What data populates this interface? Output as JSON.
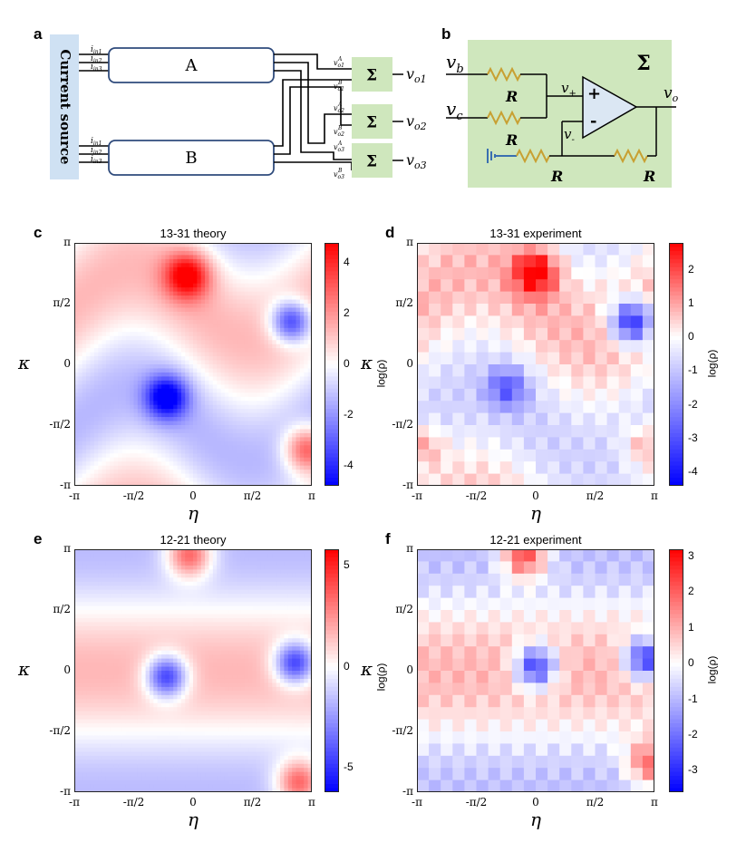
{
  "panel_labels": [
    "a",
    "b",
    "c",
    "d",
    "e",
    "f"
  ],
  "figure_a": {
    "source_label": "Current source",
    "block_a": "A",
    "block_b": "B",
    "input_labels": [
      "i",
      "in1",
      "in2",
      "in3"
    ],
    "sum_symbol": "Σ",
    "output_labels": [
      "vo1",
      "vo2",
      "vo3"
    ],
    "wire_labels": [
      "vA o1",
      "vB o1",
      "vA o2",
      "vB o2",
      "vA o3",
      "vB o3"
    ]
  },
  "figure_b": {
    "sum_symbol": "Σ",
    "vb": "v",
    "vb_sub": "b",
    "vc": "v",
    "vc_sub": "c",
    "vo": "v",
    "vo_sub": "o",
    "vplus": "v",
    "vplus_sub": "+",
    "vminus": "v",
    "vminus_sub": "-",
    "plus_sign": "+",
    "minus_sign": "-",
    "resistor_label": "R",
    "colors": {
      "background": "#cfe7bd",
      "resistor": "#c8a032",
      "opamp": "#dbe7f3"
    }
  },
  "axes": {
    "x_ticks": [
      "-π",
      "-π/2",
      "0",
      "π/2",
      "π"
    ],
    "y_ticks": [
      "π",
      "π/2",
      "0",
      "-π/2",
      "-π"
    ],
    "x_name": "η",
    "y_name": "κ",
    "cb_name": "log(ρ)"
  },
  "chart_data": [
    {
      "type": "heatmap",
      "id": "c",
      "title": "13-31 theory",
      "xlabel": "η",
      "ylabel": "κ",
      "xlim": [
        -3.1416,
        3.1416
      ],
      "ylim": [
        -3.1416,
        3.1416
      ],
      "cbar_label": "",
      "cbar_range": [
        -4.8,
        4.8
      ],
      "cbar_ticks": [
        "4",
        "2",
        "0",
        "-2",
        "-4"
      ],
      "peaks": [
        {
          "eta": -0.15,
          "kappa": 2.3,
          "value": 4.5
        },
        {
          "eta": 3.0,
          "kappa": -2.2,
          "value": 4.0
        }
      ],
      "troughs": [
        {
          "eta": 2.6,
          "kappa": 1.1,
          "value": -4.5
        },
        {
          "eta": -0.7,
          "kappa": -0.85,
          "value": -4.5
        }
      ]
    },
    {
      "type": "heatmap",
      "id": "d",
      "title": "13-31 experiment",
      "xlabel": "η",
      "ylabel": "κ",
      "xlim": [
        -3.1416,
        3.1416
      ],
      "ylim": [
        -3.1416,
        3.1416
      ],
      "cbar_label": "log(ρ)",
      "cbar_range": [
        -4.4,
        2.8
      ],
      "cbar_ticks": [
        "2",
        "1",
        "0",
        "-1",
        "-2",
        "-3",
        "-4"
      ],
      "pixelated": true,
      "peaks": [
        {
          "eta": 0.0,
          "kappa": 2.4,
          "value": 2.7
        },
        {
          "eta": -3.0,
          "kappa": -2.1,
          "value": 1.5
        },
        {
          "eta": 2.9,
          "kappa": -2.1,
          "value": 1.5
        }
      ],
      "troughs": [
        {
          "eta": 2.55,
          "kappa": 1.1,
          "value": -4.2
        },
        {
          "eta": -0.75,
          "kappa": -0.6,
          "value": -2.2
        }
      ]
    },
    {
      "type": "heatmap",
      "id": "e",
      "title": "12-21 theory",
      "xlabel": "η",
      "ylabel": "κ",
      "xlim": [
        -3.1416,
        3.1416
      ],
      "ylim": [
        -3.1416,
        3.1416
      ],
      "cbar_label": "",
      "cbar_range": [
        -6.2,
        5.8
      ],
      "cbar_ticks": [
        "5",
        "0",
        "-5"
      ],
      "peaks": [
        {
          "eta": -0.1,
          "kappa": 3.0,
          "value": 5.0
        },
        {
          "eta": 2.8,
          "kappa": -2.9,
          "value": 5.0
        }
      ],
      "troughs": [
        {
          "eta": 2.7,
          "kappa": 0.2,
          "value": -6.0
        },
        {
          "eta": -0.7,
          "kappa": -0.15,
          "value": -6.0
        }
      ]
    },
    {
      "type": "heatmap",
      "id": "f",
      "title": "12-21 experiment",
      "xlabel": "η",
      "ylabel": "κ",
      "xlim": [
        -3.1416,
        3.1416
      ],
      "ylim": [
        -3.1416,
        3.1416
      ],
      "cbar_label": "log(ρ)",
      "cbar_range": [
        -3.6,
        3.2
      ],
      "cbar_ticks": [
        "3",
        "2",
        "1",
        "0",
        "-1",
        "-2",
        "-3"
      ],
      "pixelated": true,
      "peaks": [
        {
          "eta": -0.3,
          "kappa": 3.0,
          "value": 3.1
        },
        {
          "eta": 3.0,
          "kappa": -2.4,
          "value": 2.5
        }
      ],
      "troughs": [
        {
          "eta": 0.0,
          "kappa": 0.1,
          "value": -3.4
        },
        {
          "eta": 2.9,
          "kappa": 0.3,
          "value": -3.4
        }
      ]
    }
  ]
}
